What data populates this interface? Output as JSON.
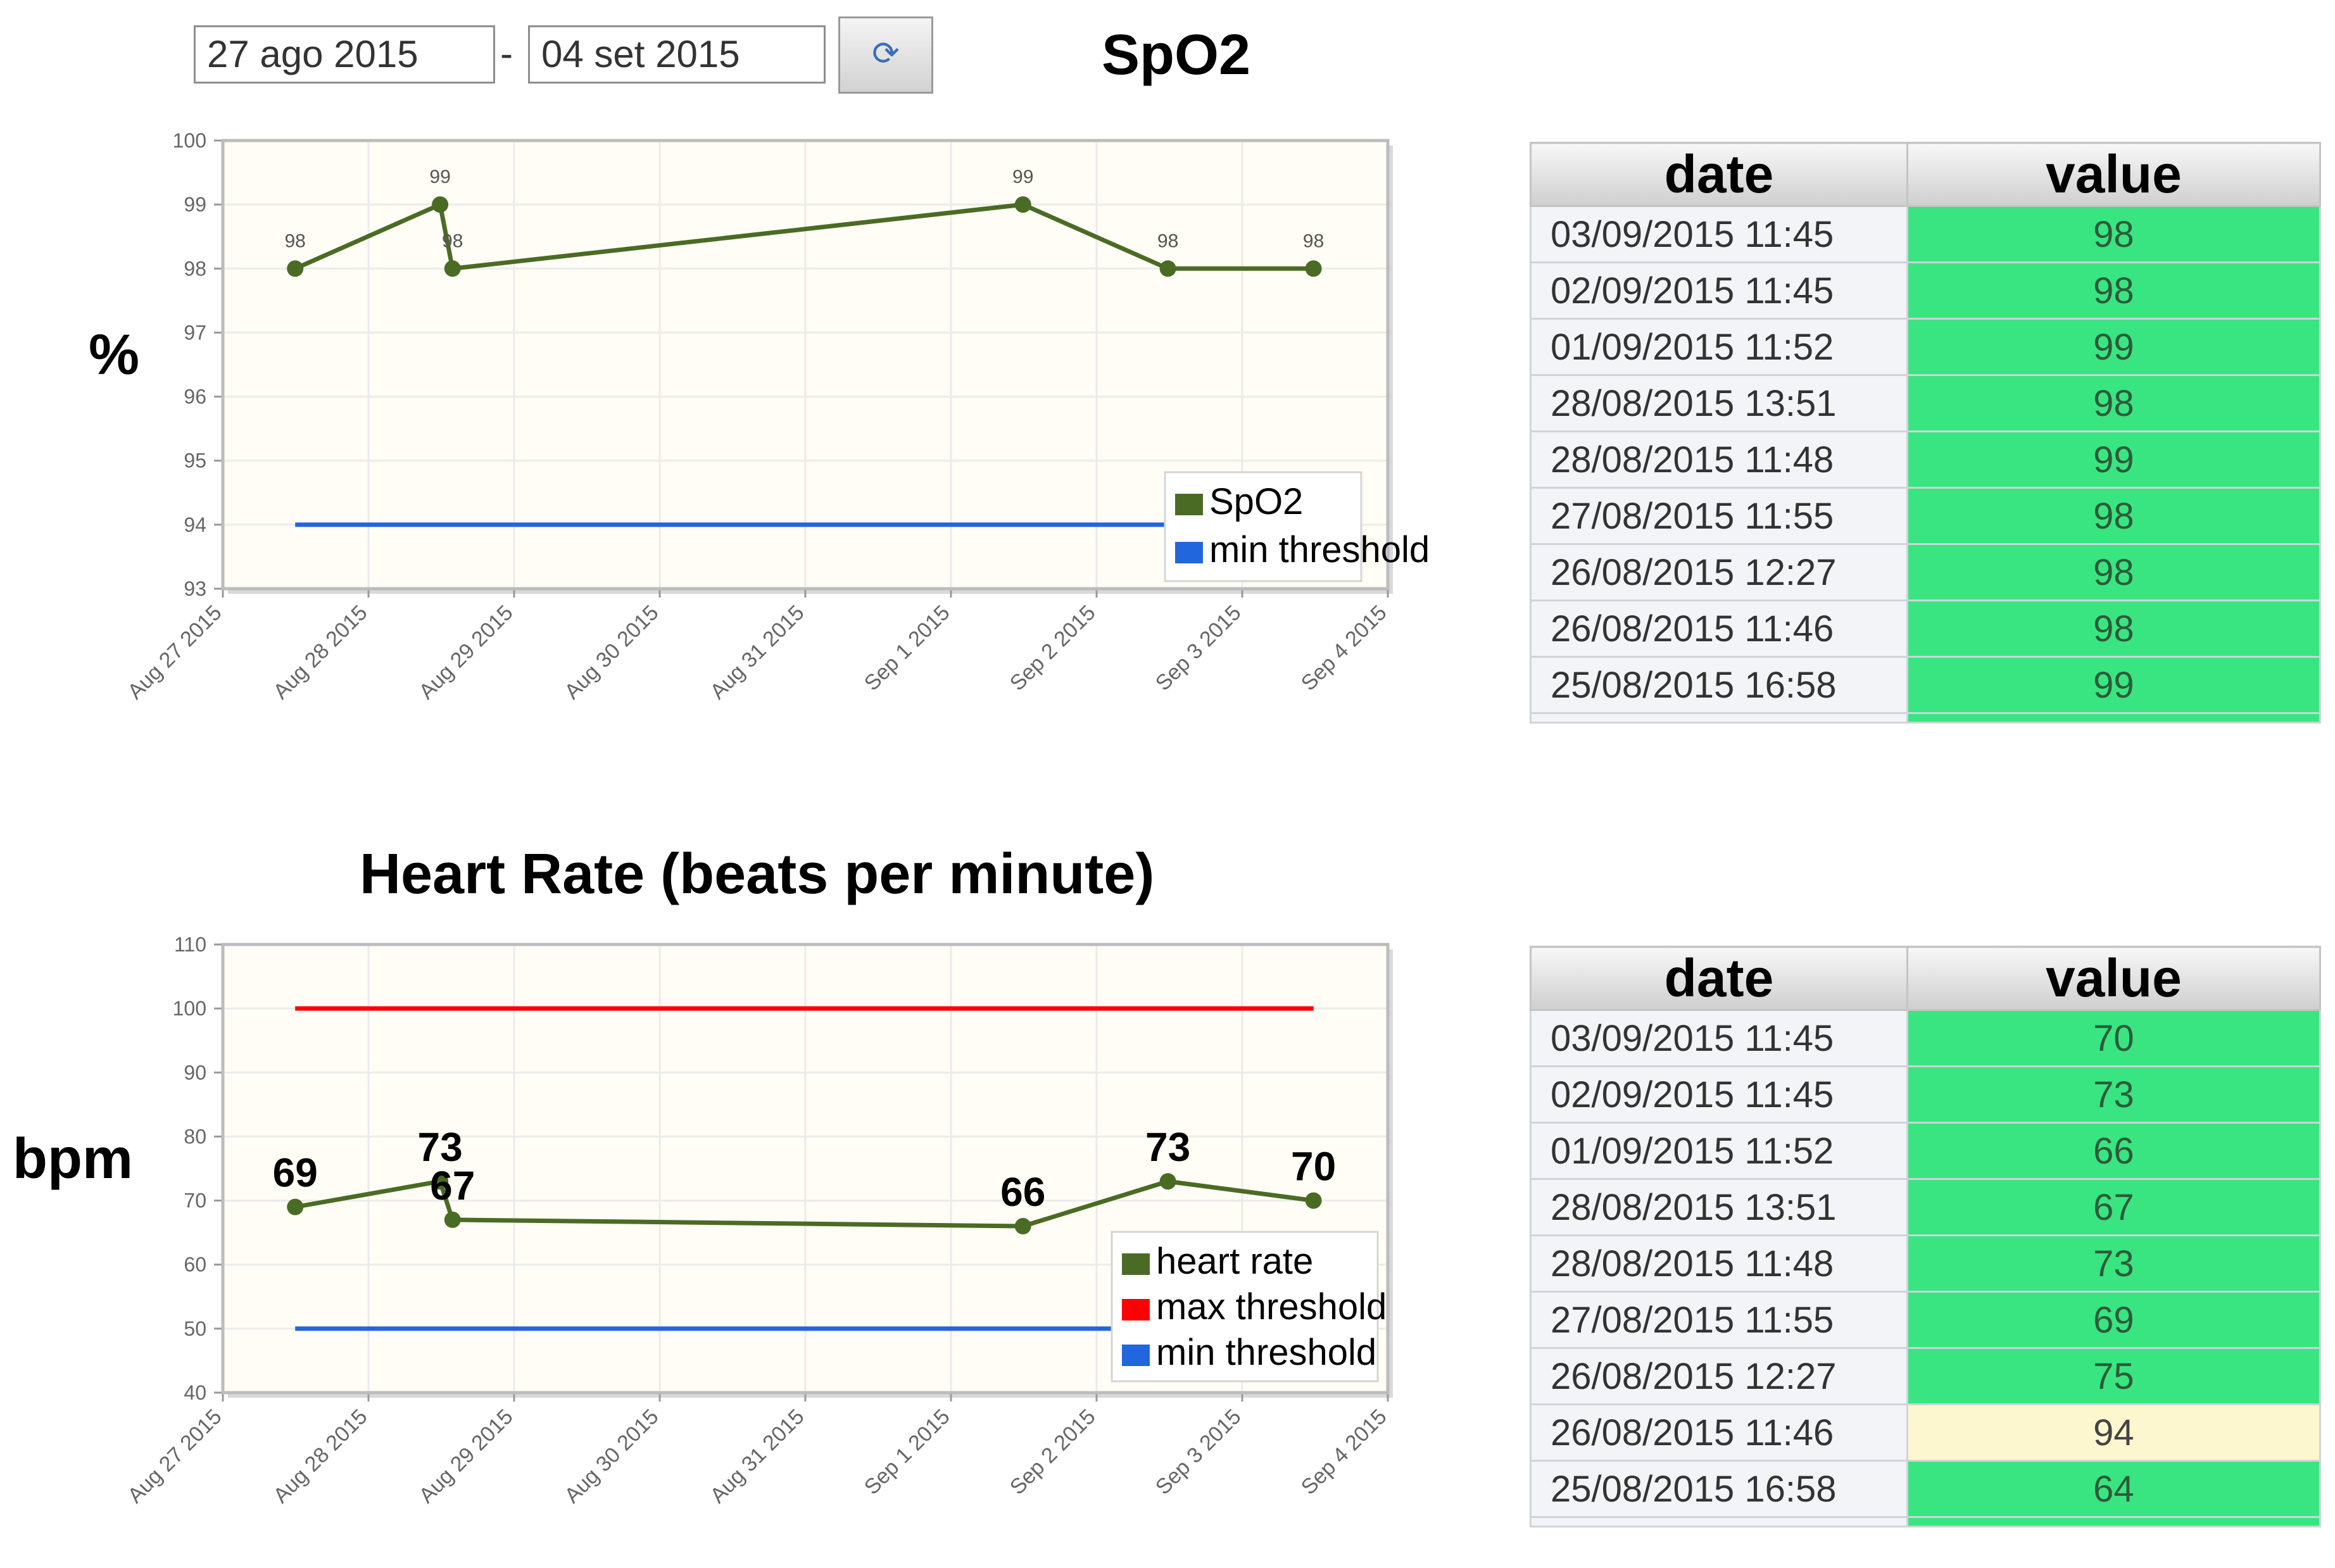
{
  "controls": {
    "date_from": "27 ago 2015",
    "date_to": "04 set 2015",
    "separator": "-",
    "refresh_icon": "refresh-icon"
  },
  "tables": {
    "spo2": {
      "headers": {
        "date": "date",
        "value": "value"
      },
      "rows": [
        {
          "date": "03/09/2015 11:45",
          "value": "98",
          "status": "normal"
        },
        {
          "date": "02/09/2015 11:45",
          "value": "98",
          "status": "normal"
        },
        {
          "date": "01/09/2015 11:52",
          "value": "99",
          "status": "normal"
        },
        {
          "date": "28/08/2015 13:51",
          "value": "98",
          "status": "normal"
        },
        {
          "date": "28/08/2015 11:48",
          "value": "99",
          "status": "normal"
        },
        {
          "date": "27/08/2015 11:55",
          "value": "98",
          "status": "normal"
        },
        {
          "date": "26/08/2015 12:27",
          "value": "98",
          "status": "normal"
        },
        {
          "date": "26/08/2015 11:46",
          "value": "98",
          "status": "normal"
        },
        {
          "date": "25/08/2015 16:58",
          "value": "99",
          "status": "normal"
        }
      ]
    },
    "hr": {
      "headers": {
        "date": "date",
        "value": "value"
      },
      "rows": [
        {
          "date": "03/09/2015 11:45",
          "value": "70",
          "status": "normal"
        },
        {
          "date": "02/09/2015 11:45",
          "value": "73",
          "status": "normal"
        },
        {
          "date": "01/09/2015 11:52",
          "value": "66",
          "status": "normal"
        },
        {
          "date": "28/08/2015 13:51",
          "value": "67",
          "status": "normal"
        },
        {
          "date": "28/08/2015 11:48",
          "value": "73",
          "status": "normal"
        },
        {
          "date": "27/08/2015 11:55",
          "value": "69",
          "status": "normal"
        },
        {
          "date": "26/08/2015 12:27",
          "value": "75",
          "status": "normal"
        },
        {
          "date": "26/08/2015 11:46",
          "value": "94",
          "status": "warning"
        },
        {
          "date": "25/08/2015 16:58",
          "value": "64",
          "status": "normal"
        }
      ]
    }
  },
  "colors": {
    "series": "#4a6b24",
    "max_threshold": "#ff0000",
    "min_threshold": "#2266dd",
    "plot_bg": "#fffdf5",
    "normal_cell": "#39e581",
    "warning_cell": "#fdf7cf"
  },
  "chart_data": [
    {
      "type": "line",
      "title": "SpO2",
      "ylabel": "%",
      "xlabel": "",
      "ylim": [
        93,
        100
      ],
      "yticks": [
        "93",
        "94",
        "95",
        "96",
        "97",
        "98",
        "99",
        "100"
      ],
      "xlim": [
        "2015-08-27",
        "2015-09-04"
      ],
      "xticks": [
        "Aug 27 2015",
        "Aug 28 2015",
        "Aug 29 2015",
        "Aug 30 2015",
        "Aug 31 2015",
        "Sep 1 2015",
        "Sep 2 2015",
        "Sep 3 2015",
        "Sep 4 2015"
      ],
      "grid": true,
      "legend": "bottom-right",
      "series": [
        {
          "name": "SpO2",
          "color": "#4a6b24",
          "x": [
            "2015-08-27 11:55",
            "2015-08-28 11:48",
            "2015-08-28 13:51",
            "2015-09-01 11:52",
            "2015-09-02 11:45",
            "2015-09-03 11:45"
          ],
          "y": [
            98,
            99,
            98,
            99,
            98,
            98
          ],
          "labels": [
            "98",
            "99",
            "98",
            "99",
            "98",
            "98"
          ]
        },
        {
          "name": "min threshold",
          "color": "#2266dd",
          "x": [
            "2015-08-27 11:55",
            "2015-09-03 11:45"
          ],
          "y": [
            94,
            94
          ]
        }
      ]
    },
    {
      "type": "line",
      "title": "Heart Rate (beats per minute)",
      "ylabel": "bpm",
      "xlabel": "",
      "ylim": [
        40,
        110
      ],
      "yticks": [
        "40",
        "50",
        "60",
        "70",
        "80",
        "90",
        "100",
        "110"
      ],
      "xlim": [
        "2015-08-27",
        "2015-09-04"
      ],
      "xticks": [
        "Aug 27 2015",
        "Aug 28 2015",
        "Aug 29 2015",
        "Aug 30 2015",
        "Aug 31 2015",
        "Sep 1 2015",
        "Sep 2 2015",
        "Sep 3 2015",
        "Sep 4 2015"
      ],
      "grid": true,
      "legend": "bottom-right",
      "series": [
        {
          "name": "heart rate",
          "color": "#4a6b24",
          "x": [
            "2015-08-27 11:55",
            "2015-08-28 11:48",
            "2015-08-28 13:51",
            "2015-09-01 11:52",
            "2015-09-02 11:45",
            "2015-09-03 11:45"
          ],
          "y": [
            69,
            73,
            67,
            66,
            73,
            70
          ],
          "labels": [
            "69",
            "73",
            "67",
            "66",
            "73",
            "70"
          ]
        },
        {
          "name": "max threshold",
          "color": "#ff0000",
          "x": [
            "2015-08-27 11:55",
            "2015-09-03 11:45"
          ],
          "y": [
            100,
            100
          ]
        },
        {
          "name": "min threshold",
          "color": "#2266dd",
          "x": [
            "2015-08-27 11:55",
            "2015-09-03 11:45"
          ],
          "y": [
            50,
            50
          ]
        }
      ]
    }
  ]
}
